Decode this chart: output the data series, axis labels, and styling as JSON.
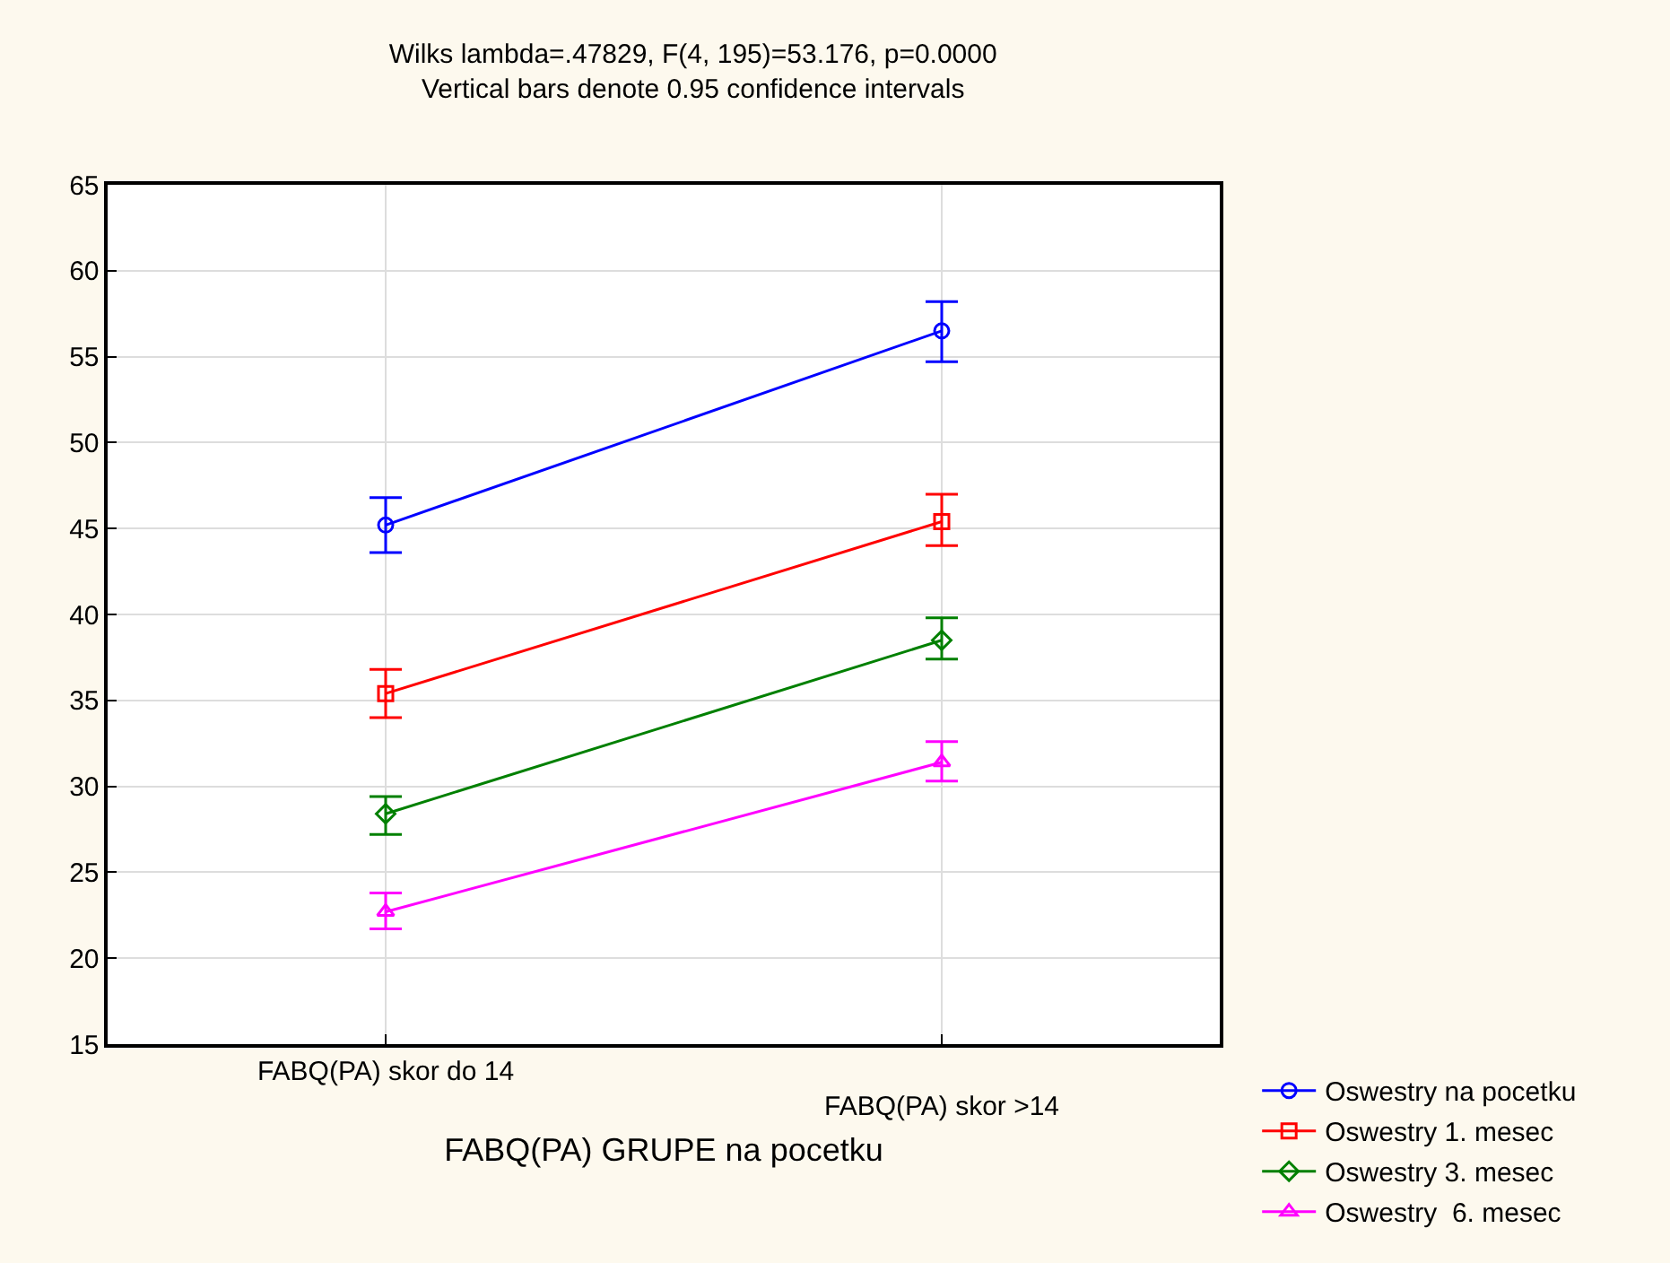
{
  "chart_data": {
    "type": "line",
    "title": "Wilks lambda=.47829, F(4, 195)=53.176, p=0.0000",
    "subtitle": "Vertical bars denote 0.95 confidence intervals",
    "xlabel": "FABQ(PA) GRUPE na pocetku",
    "categories": [
      "FABQ(PA) skor do 14",
      "FABQ(PA) skor >14"
    ],
    "series": [
      {
        "name": "Oswestry na pocetku",
        "color": "#0000ff",
        "marker": "circle",
        "values": [
          45.2,
          56.5
        ],
        "errors": [
          [
            43.6,
            46.8
          ],
          [
            54.7,
            58.2
          ]
        ]
      },
      {
        "name": "Oswestry 1. mesec",
        "color": "#ff0000",
        "marker": "square",
        "values": [
          35.4,
          45.4
        ],
        "errors": [
          [
            34.0,
            36.8
          ],
          [
            44.0,
            47.0
          ]
        ]
      },
      {
        "name": "Oswestry 3. mesec",
        "color": "#008000",
        "marker": "diamond",
        "values": [
          28.4,
          38.5
        ],
        "errors": [
          [
            27.2,
            29.4
          ],
          [
            37.4,
            39.8
          ]
        ]
      },
      {
        "name": "Oswestry  6. mesec",
        "color": "#ff00ff",
        "marker": "triangle",
        "values": [
          22.7,
          31.4
        ],
        "errors": [
          [
            21.7,
            23.8
          ],
          [
            30.3,
            32.6
          ]
        ]
      }
    ],
    "ylim": [
      15,
      65
    ],
    "yticks": [
      15,
      20,
      25,
      30,
      35,
      40,
      45,
      50,
      55,
      60,
      65
    ],
    "grid": true,
    "legend": "bottom right"
  }
}
